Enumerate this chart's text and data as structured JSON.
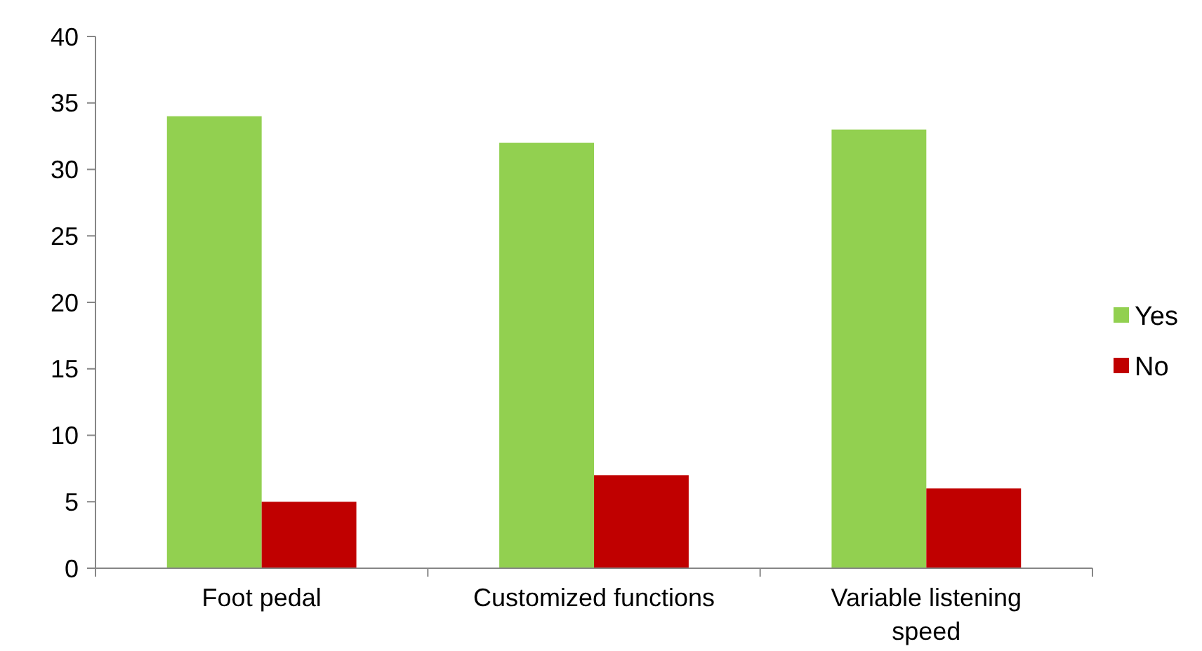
{
  "chart_data": {
    "type": "bar",
    "categories": [
      "Foot pedal",
      "Customized functions",
      "Variable listening speed"
    ],
    "series": [
      {
        "name": "Yes",
        "color": "#92d050",
        "values": [
          34,
          32,
          33
        ]
      },
      {
        "name": "No",
        "color": "#c00000",
        "values": [
          5,
          7,
          6
        ]
      }
    ],
    "ylim": [
      0,
      40
    ],
    "yticks": [
      0,
      5,
      10,
      15,
      20,
      25,
      30,
      35,
      40
    ],
    "grid": false,
    "legend": "right"
  }
}
